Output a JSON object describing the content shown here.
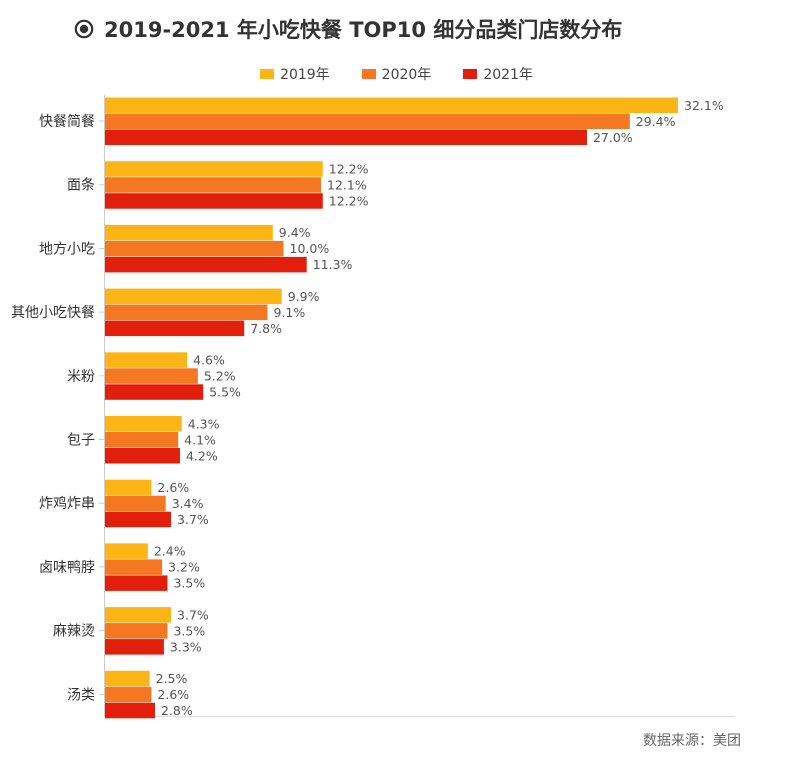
{
  "title": "2019-2021 年小吃快餐 TOP10 细分品类门店数分布",
  "source": "数据来源：美团",
  "icons": {
    "title": "target-icon"
  },
  "colors": {
    "2019": "#FDB515",
    "2020": "#F47721",
    "2021": "#E21F0C"
  },
  "chart_data": {
    "type": "bar",
    "orientation": "horizontal",
    "value_suffix": "%",
    "categories": [
      "快餐简餐",
      "面条",
      "地方小吃",
      "其他小吃快餐",
      "米粉",
      "包子",
      "炸鸡炸串",
      "卤味鸭脖",
      "麻辣烫",
      "汤类"
    ],
    "series": [
      {
        "name": "2019年",
        "color": "#FDB515",
        "values": [
          32.1,
          12.2,
          9.4,
          9.9,
          4.6,
          4.3,
          2.6,
          2.4,
          3.7,
          2.5
        ]
      },
      {
        "name": "2020年",
        "color": "#F47721",
        "values": [
          29.4,
          12.1,
          10.0,
          9.1,
          5.2,
          4.1,
          3.4,
          3.2,
          3.5,
          2.6
        ]
      },
      {
        "name": "2021年",
        "color": "#E21F0C",
        "values": [
          27.0,
          12.2,
          11.3,
          7.8,
          5.5,
          4.2,
          3.7,
          3.5,
          3.3,
          2.8
        ]
      }
    ],
    "xlim": [
      0,
      35
    ],
    "legend_position": "top",
    "grid": false
  }
}
